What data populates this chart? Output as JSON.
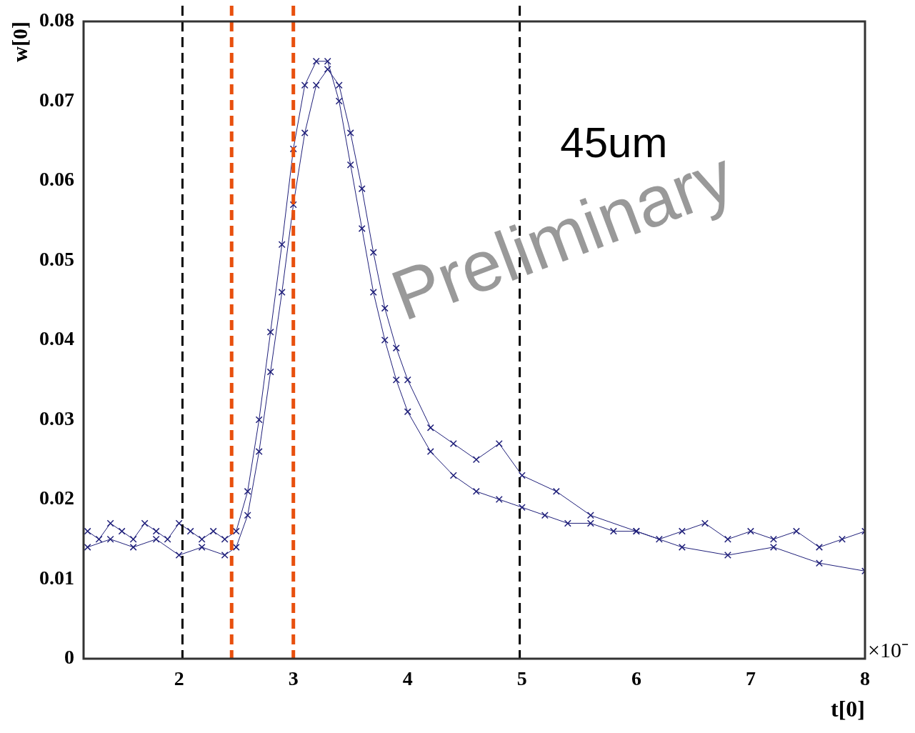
{
  "chart_data": {
    "type": "line",
    "xlabel": "t[0]",
    "ylabel": "w[0]",
    "xlim": [
      1.165,
      8
    ],
    "xticks": [
      2,
      3,
      4,
      5,
      6,
      7,
      8
    ],
    "ylim": [
      0,
      0.08
    ],
    "yticks": [
      0,
      0.01,
      0.02,
      0.03,
      0.04,
      0.05,
      0.06,
      0.07,
      0.08
    ],
    "grid": false,
    "legend": false,
    "marker": "cross",
    "line_style": "solid",
    "series": [
      {
        "color": "#1f1f7a",
        "x": [
          1.2,
          1.3,
          1.4,
          1.5,
          1.6,
          1.7,
          1.8,
          1.9,
          2.0,
          2.1,
          2.2,
          2.3,
          2.4,
          2.5,
          2.6,
          2.7,
          2.8,
          2.9,
          3.0,
          3.1,
          3.2,
          3.3,
          3.4,
          3.5,
          3.6,
          3.7,
          3.8,
          3.9,
          4.0,
          4.2,
          4.4,
          4.6,
          4.8,
          5.0,
          5.2,
          5.4,
          5.6,
          5.8,
          6.0,
          6.2,
          6.4,
          6.6,
          6.8,
          7.0,
          7.2,
          7.4,
          7.6,
          7.8,
          8.0
        ],
        "values": [
          0.016,
          0.015,
          0.017,
          0.016,
          0.015,
          0.017,
          0.016,
          0.015,
          0.017,
          0.016,
          0.015,
          0.016,
          0.015,
          0.016,
          0.021,
          0.03,
          0.041,
          0.052,
          0.064,
          0.072,
          0.075,
          0.075,
          0.07,
          0.062,
          0.054,
          0.046,
          0.04,
          0.035,
          0.031,
          0.026,
          0.023,
          0.021,
          0.02,
          0.019,
          0.018,
          0.017,
          0.017,
          0.016,
          0.016,
          0.015,
          0.016,
          0.017,
          0.015,
          0.016,
          0.015,
          0.016,
          0.014,
          0.015,
          0.016
        ]
      },
      {
        "color": "#1f1f7a",
        "x": [
          1.2,
          1.4,
          1.6,
          1.8,
          2.0,
          2.2,
          2.4,
          2.5,
          2.6,
          2.7,
          2.8,
          2.9,
          3.0,
          3.1,
          3.2,
          3.3,
          3.4,
          3.5,
          3.6,
          3.7,
          3.8,
          3.9,
          4.0,
          4.2,
          4.4,
          4.6,
          4.8,
          5.0,
          5.3,
          5.6,
          6.0,
          6.4,
          6.8,
          7.2,
          7.6,
          8.0
        ],
        "values": [
          0.014,
          0.015,
          0.014,
          0.015,
          0.013,
          0.014,
          0.013,
          0.014,
          0.018,
          0.026,
          0.036,
          0.046,
          0.057,
          0.066,
          0.072,
          0.074,
          0.072,
          0.066,
          0.059,
          0.051,
          0.044,
          0.039,
          0.035,
          0.029,
          0.027,
          0.025,
          0.027,
          0.023,
          0.021,
          0.018,
          0.016,
          0.014,
          0.013,
          0.014,
          0.012,
          0.011
        ]
      }
    ],
    "ref_lines": [
      {
        "axis": "x",
        "value": 2.03,
        "color": "#000000",
        "line_style": "dashed"
      },
      {
        "axis": "x",
        "value": 2.46,
        "color": "#e8500e",
        "line_style": "dashed"
      },
      {
        "axis": "x",
        "value": 3.0,
        "color": "#e8500e",
        "line_style": "dashed"
      },
      {
        "axis": "x",
        "value": 4.98,
        "color": "#000000",
        "line_style": "dashed"
      }
    ],
    "annotations": [
      "45um",
      "Preliminary",
      "×10⁻"
    ]
  }
}
